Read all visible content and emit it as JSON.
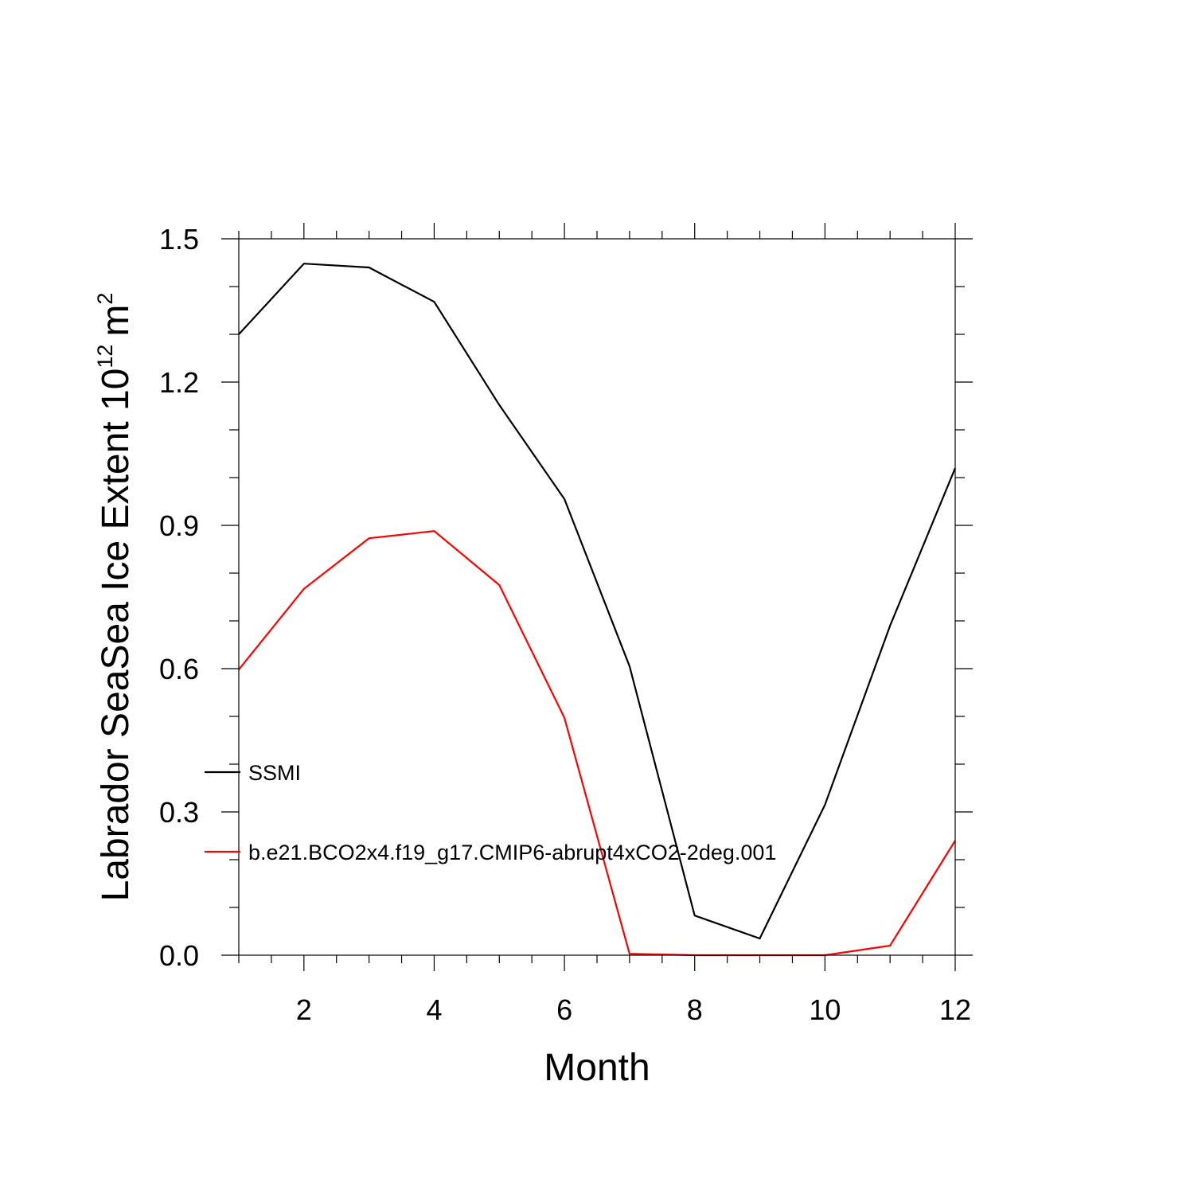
{
  "chart_data": {
    "type": "line",
    "xlabel": "Month",
    "ylabel": "Labrador SeaSea Ice Extent 10",
    "ylabel_exponent": "12",
    "ylabel_unit": "m",
    "ylabel_unit_exponent": "2",
    "xlim": [
      1,
      12
    ],
    "ylim": [
      0,
      1.5
    ],
    "x_ticks": [
      2,
      4,
      6,
      8,
      10,
      12
    ],
    "x_tick_labels": [
      "2",
      "4",
      "6",
      "8",
      "10",
      "12"
    ],
    "y_ticks": [
      0,
      0.3,
      0.6,
      0.9,
      1.2,
      1.5
    ],
    "y_tick_labels": [
      "0.0",
      "0.3",
      "0.6",
      "0.9",
      "1.2",
      "1.5"
    ],
    "grid": false,
    "legend_placement": "left-middle",
    "x": [
      1,
      2,
      3,
      4,
      5,
      6,
      7,
      8,
      9,
      10,
      11,
      12
    ],
    "series": [
      {
        "name": "SSMI",
        "color": "#000000",
        "values": [
          1.3,
          1.448,
          1.44,
          1.368,
          1.152,
          0.955,
          0.605,
          0.083,
          0.035,
          0.315,
          0.69,
          1.02
        ]
      },
      {
        "name": "b.e21.BCO2x4.f19_g17.CMIP6-abrupt4xCO2-2deg.001",
        "color": "#ff0000",
        "values": [
          0.598,
          0.767,
          0.873,
          0.888,
          0.775,
          0.497,
          0.003,
          0.0,
          0.0,
          0.0,
          0.02,
          0.24
        ]
      }
    ]
  }
}
